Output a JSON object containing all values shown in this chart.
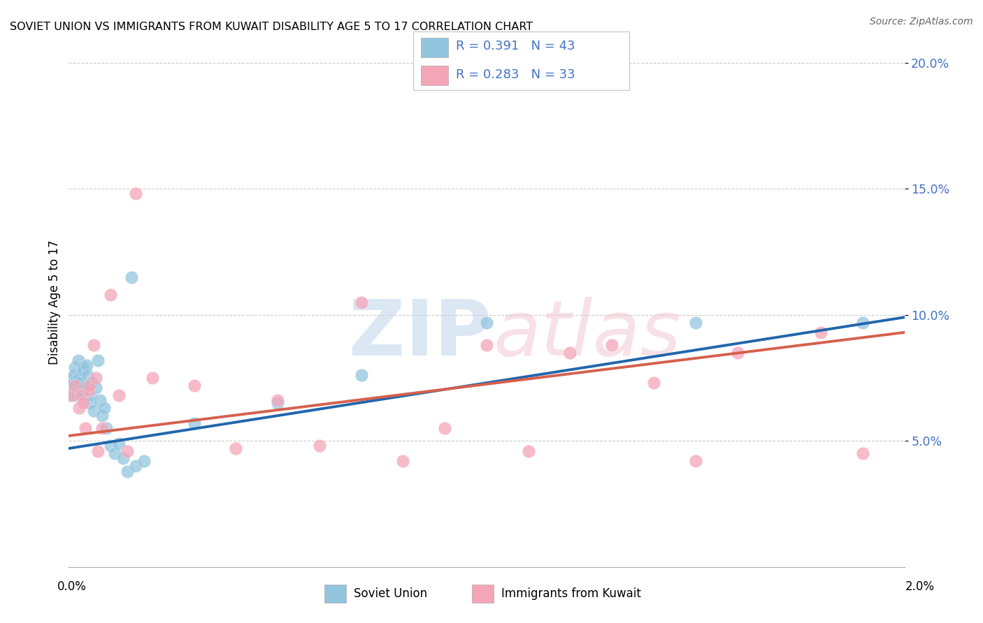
{
  "title": "SOVIET UNION VS IMMIGRANTS FROM KUWAIT DISABILITY AGE 5 TO 17 CORRELATION CHART",
  "source": "Source: ZipAtlas.com",
  "ylabel": "Disability Age 5 to 17",
  "x_min": 0.0,
  "x_max": 0.02,
  "y_min": 0.0,
  "y_max": 0.21,
  "y_ticks": [
    0.05,
    0.1,
    0.15,
    0.2
  ],
  "y_tick_labels": [
    "5.0%",
    "10.0%",
    "15.0%",
    "20.0%"
  ],
  "legend1_R": "0.391",
  "legend1_N": "43",
  "legend2_R": "0.283",
  "legend2_N": "33",
  "color_blue": "#92c5de",
  "color_pink": "#f4a5b8",
  "line_color_blue": "#2166ac",
  "line_color_pink": "#d6604d",
  "soviet_x": [
    5e-05,
    8e-05,
    0.0001,
    0.00012,
    0.00013,
    0.00015,
    0.00016,
    0.00018,
    0.0002,
    0.00022,
    0.00025,
    0.00028,
    0.0003,
    0.00032,
    0.00035,
    0.00038,
    0.0004,
    0.00042,
    0.00045,
    0.0005,
    0.00052,
    0.00055,
    0.0006,
    0.00065,
    0.0007,
    0.00075,
    0.0008,
    0.00085,
    0.0009,
    0.001,
    0.0011,
    0.0012,
    0.0013,
    0.0014,
    0.0015,
    0.0016,
    0.0018,
    0.003,
    0.005,
    0.007,
    0.01,
    0.015,
    0.019
  ],
  "soviet_y": [
    0.068,
    0.075,
    0.072,
    0.076,
    0.073,
    0.079,
    0.072,
    0.074,
    0.068,
    0.082,
    0.075,
    0.073,
    0.069,
    0.079,
    0.078,
    0.072,
    0.071,
    0.08,
    0.076,
    0.065,
    0.068,
    0.073,
    0.062,
    0.071,
    0.082,
    0.066,
    0.06,
    0.063,
    0.055,
    0.048,
    0.045,
    0.049,
    0.043,
    0.038,
    0.115,
    0.04,
    0.042,
    0.057,
    0.065,
    0.076,
    0.097,
    0.097,
    0.097
  ],
  "kuwait_x": [
    8e-05,
    0.00015,
    0.00025,
    0.0003,
    0.00035,
    0.0004,
    0.00048,
    0.0005,
    0.0006,
    0.00065,
    0.0007,
    0.0008,
    0.001,
    0.0012,
    0.0014,
    0.0016,
    0.002,
    0.003,
    0.004,
    0.005,
    0.006,
    0.007,
    0.008,
    0.009,
    0.01,
    0.011,
    0.012,
    0.013,
    0.014,
    0.015,
    0.016,
    0.018,
    0.019
  ],
  "kuwait_y": [
    0.068,
    0.072,
    0.063,
    0.068,
    0.065,
    0.055,
    0.07,
    0.072,
    0.088,
    0.075,
    0.046,
    0.055,
    0.108,
    0.068,
    0.046,
    0.148,
    0.075,
    0.072,
    0.047,
    0.066,
    0.048,
    0.105,
    0.042,
    0.055,
    0.088,
    0.046,
    0.085,
    0.088,
    0.073,
    0.042,
    0.085,
    0.093,
    0.045
  ],
  "soviet_line_x": [
    0.0,
    0.02
  ],
  "soviet_line_y": [
    0.047,
    0.099
  ],
  "kuwait_line_x": [
    0.0,
    0.02
  ],
  "kuwait_line_y": [
    0.052,
    0.093
  ]
}
